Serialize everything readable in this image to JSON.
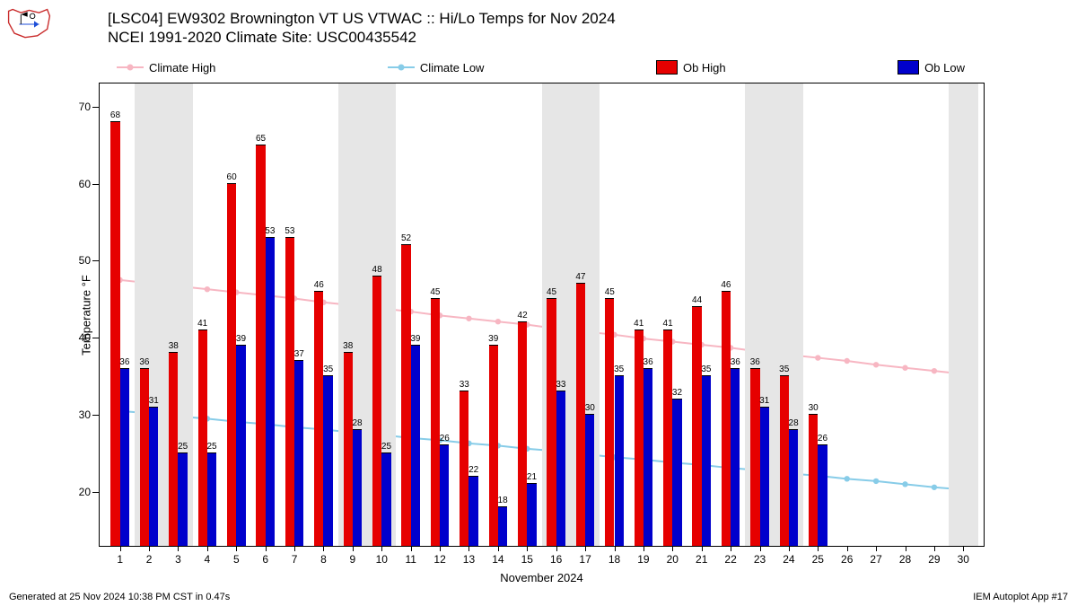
{
  "logo": {
    "outline_color": "#c92a2a",
    "accent_color": "#1d4ed8"
  },
  "title": {
    "line1": "[LSC04] EW9302 Brownington             VT US    VTWAC :: Hi/Lo Temps for Nov 2024",
    "line2": "NCEI 1991-2020 Climate Site: USC00435542"
  },
  "legend": {
    "climate_high": "Climate High",
    "climate_low": "Climate Low",
    "ob_high": "Ob High",
    "ob_low": "Ob Low"
  },
  "footer": {
    "left": "Generated at 25 Nov 2024 10:38 PM CST in 0.47s",
    "right": "IEM Autoplot App #17"
  },
  "chart": {
    "type": "bar+line",
    "ylabel": "Temperature °F",
    "xlabel": "November 2024",
    "ylim": [
      13,
      73
    ],
    "yticks": [
      20,
      30,
      40,
      50,
      60,
      70
    ],
    "xlim": [
      0.3,
      30.7
    ],
    "days": [
      1,
      2,
      3,
      4,
      5,
      6,
      7,
      8,
      9,
      10,
      11,
      12,
      13,
      14,
      15,
      16,
      17,
      18,
      19,
      20,
      21,
      22,
      23,
      24,
      25,
      26,
      27,
      28,
      29,
      30
    ],
    "weekend_days": [
      2,
      3,
      9,
      10,
      16,
      17,
      23,
      24,
      30
    ],
    "plot_bg": "#ffffff",
    "band_color": "#e6e6e6",
    "colors": {
      "ob_high": "#e60000",
      "ob_low": "#0000cc",
      "climate_high": "#f7b6c2",
      "climate_low": "#87cce8",
      "bar_edge": "#000000"
    },
    "bar_width": 0.32,
    "ob_high": [
      68,
      36,
      38,
      41,
      60,
      65,
      53,
      46,
      38,
      48,
      52,
      45,
      33,
      39,
      42,
      45,
      47,
      45,
      41,
      41,
      44,
      46,
      36,
      35,
      30
    ],
    "ob_low": [
      36,
      31,
      25,
      25,
      39,
      53,
      37,
      35,
      28,
      25,
      39,
      26,
      22,
      18,
      21,
      33,
      30,
      35,
      36,
      32,
      35,
      36,
      31,
      28,
      26
    ],
    "climate_high": [
      47.5,
      47.1,
      46.7,
      46.3,
      45.9,
      45.5,
      45.1,
      44.6,
      44.2,
      43.8,
      43.4,
      42.9,
      42.5,
      42.1,
      41.7,
      41.2,
      40.8,
      40.4,
      39.9,
      39.5,
      39.1,
      38.7,
      38.2,
      37.8,
      37.4,
      37.0,
      36.5,
      36.1,
      35.7,
      35.3
    ],
    "climate_low": [
      30.5,
      30.2,
      29.8,
      29.5,
      29.1,
      28.8,
      28.4,
      28.1,
      27.7,
      27.4,
      27.0,
      26.7,
      26.3,
      26.0,
      25.6,
      25.3,
      24.9,
      24.5,
      24.2,
      23.8,
      23.5,
      23.1,
      22.8,
      22.4,
      22.1,
      21.7,
      21.4,
      21.0,
      20.6,
      20.3
    ],
    "marker_radius": 3.2,
    "line_width": 2,
    "label_fontsize": 10,
    "tick_fontsize": 12,
    "axis_fontsize": 13
  }
}
